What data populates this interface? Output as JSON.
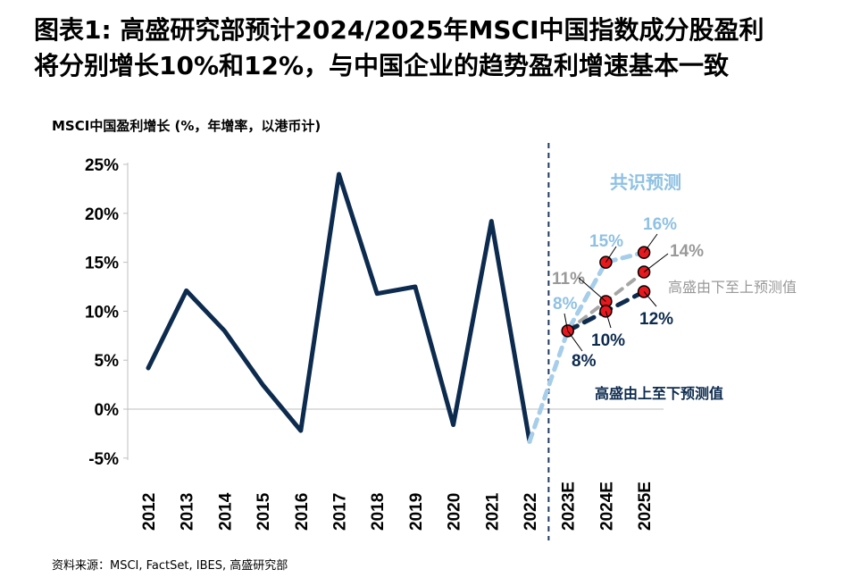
{
  "title": {
    "line1": "图表1: 高盛研究部预计2024/2025年MSCI中国指数成分股盈利",
    "line2": "将分别增长10%和12%，与中国企业的趋势盈利增速基本一致"
  },
  "subtitle": "MSCI中国盈利增长 (%，年增率，以港币计)",
  "source": "资料来源：MSCI, FactSet, IBES, 高盛研究部",
  "colors": {
    "actual": "#0d2b4e",
    "consensus": "#a6cdea",
    "gs_bottom_up": "#a6a6a6",
    "gs_top_down": "#0d2b4e",
    "marker": "#e8191e",
    "divider": "#1f3a5f",
    "consensus_label": "#8fc1e3",
    "gray_label": "#999999"
  },
  "chart_data": {
    "type": "line",
    "categories": [
      "2012",
      "2013",
      "2014",
      "2015",
      "2016",
      "2017",
      "2018",
      "2019",
      "2020",
      "2021",
      "2022",
      "2023E",
      "2024E",
      "2025E"
    ],
    "ylim": [
      -5,
      25
    ],
    "yticks": [
      "-5%",
      "0%",
      "5%",
      "10%",
      "15%",
      "20%",
      "25%"
    ],
    "ytick_values": [
      -5,
      0,
      5,
      10,
      15,
      20,
      25
    ],
    "series": [
      {
        "key": "actual",
        "x": [
          "2012",
          "2013",
          "2014",
          "2015",
          "2016",
          "2017",
          "2018",
          "2019",
          "2020",
          "2021",
          "2022"
        ],
        "values": [
          4.2,
          12.1,
          8.0,
          2.5,
          -2.2,
          24.0,
          11.8,
          12.5,
          -1.6,
          19.2,
          -3.3
        ]
      },
      {
        "key": "consensus",
        "x": [
          "2022",
          "2023E",
          "2024E",
          "2025E"
        ],
        "values": [
          -3.3,
          8.0,
          15.0,
          16.0
        ]
      },
      {
        "key": "gs_bottom_up",
        "x": [
          "2023E",
          "2024E",
          "2025E"
        ],
        "values": [
          8.0,
          11.0,
          14.0
        ]
      },
      {
        "key": "gs_top_down",
        "x": [
          "2023E",
          "2024E",
          "2025E"
        ],
        "values": [
          8.0,
          10.0,
          12.0
        ]
      }
    ],
    "markers": [
      {
        "x": "2023E",
        "y": 8.0
      },
      {
        "x": "2024E",
        "y": 15.0
      },
      {
        "x": "2024E",
        "y": 11.0
      },
      {
        "x": "2024E",
        "y": 10.0
      },
      {
        "x": "2025E",
        "y": 16.0
      },
      {
        "x": "2025E",
        "y": 14.0
      },
      {
        "x": "2025E",
        "y": 12.0
      }
    ],
    "annotations": {
      "consensus_title": "共识预测",
      "gs_bottom_up_label": "高盛由下至上预测值",
      "gs_top_down_label": "高盛由上至下预测值",
      "label_2023_consensus": "8%",
      "label_2023_gs": "8%",
      "label_2024_consensus": "15%",
      "label_2024_bottom_up": "11%",
      "label_2024_top_down": "10%",
      "label_2025_consensus": "16%",
      "label_2025_bottom_up": "14%",
      "label_2025_top_down": "12%"
    }
  }
}
